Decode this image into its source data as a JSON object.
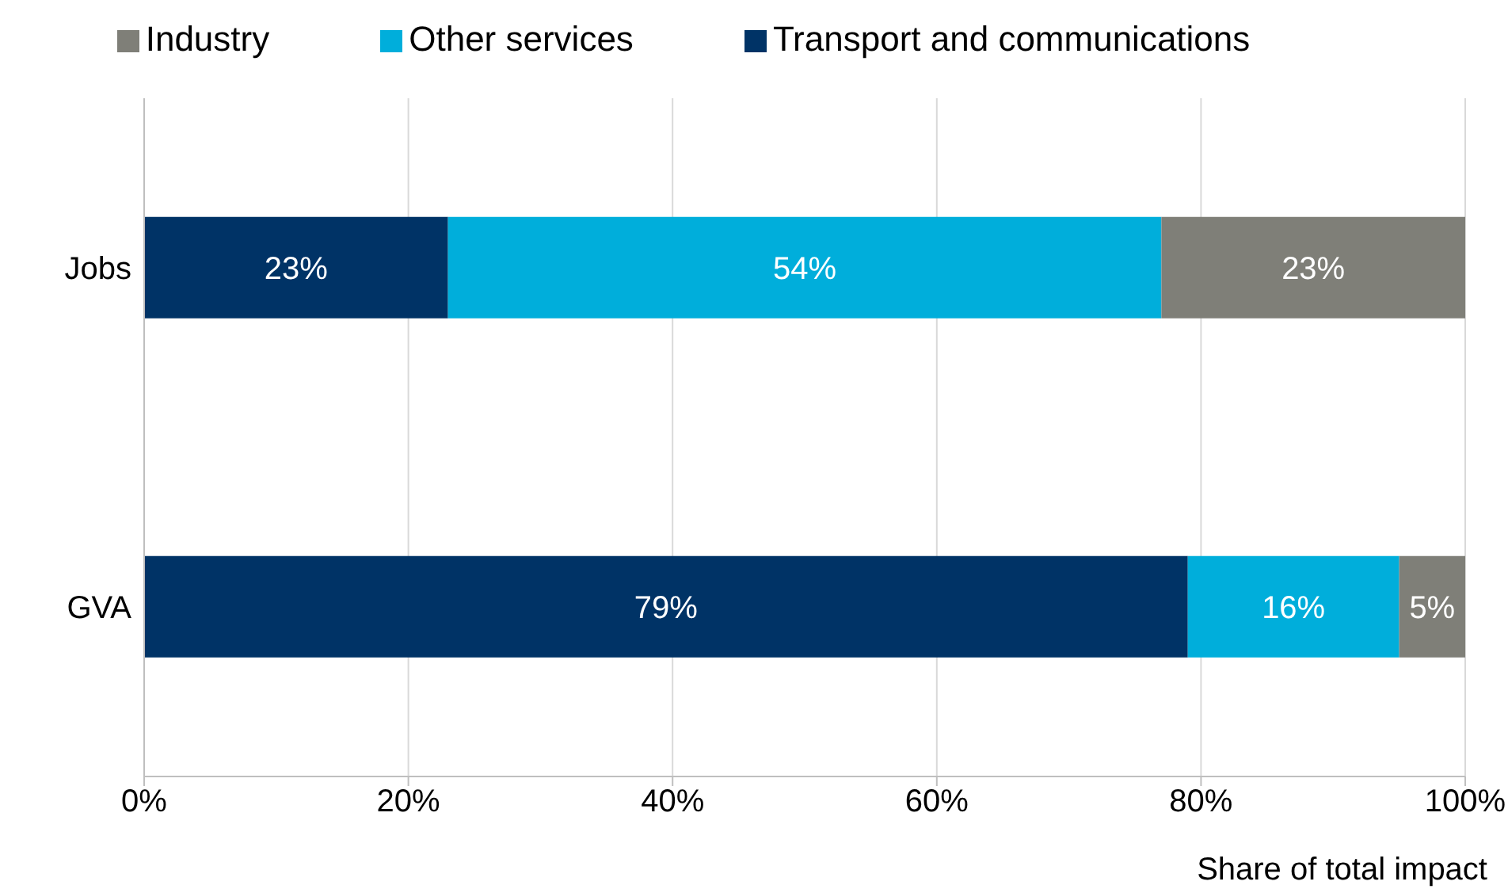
{
  "chart_data": {
    "type": "bar",
    "orientation": "horizontal",
    "stacked": true,
    "categories": [
      "Jobs",
      "GVA"
    ],
    "series": [
      {
        "name": "Transport and communications",
        "color": "#003366",
        "values": [
          23,
          79
        ],
        "value_labels": [
          "23%",
          "79%"
        ]
      },
      {
        "name": "Other services",
        "color": "#00aedb",
        "values": [
          54,
          16
        ],
        "value_labels": [
          "54%",
          "16%"
        ]
      },
      {
        "name": "Industry",
        "color": "#7f7f78",
        "values": [
          23,
          5
        ],
        "value_labels": [
          "23%",
          "5%"
        ]
      }
    ],
    "xlim": [
      0,
      100
    ],
    "xticks": [
      {
        "value": 0,
        "label": "0%"
      },
      {
        "value": 20,
        "label": "20%"
      },
      {
        "value": 40,
        "label": "40%"
      },
      {
        "value": 60,
        "label": "60%"
      },
      {
        "value": 80,
        "label": "80%"
      },
      {
        "value": 100,
        "label": "100%"
      }
    ],
    "xlabel": "Share of total impact",
    "grid": "x",
    "legend": "top"
  }
}
